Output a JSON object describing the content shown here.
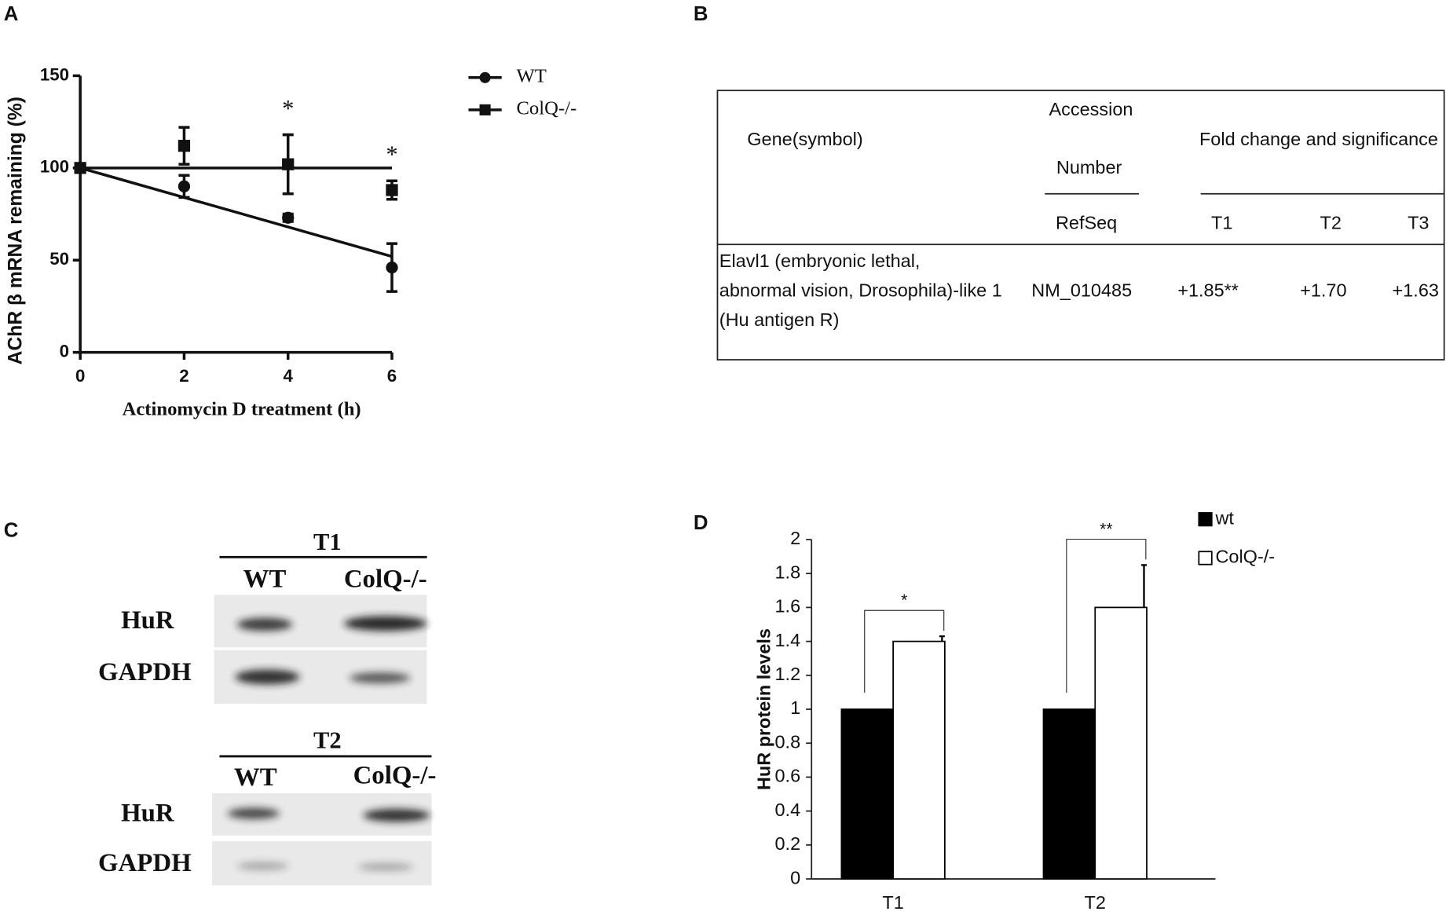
{
  "panel_labels": [
    "A",
    "B",
    "C",
    "D"
  ],
  "chart_data": [
    {
      "type": "line",
      "x_label": "Actinomycin D treatment (h)",
      "y_label": "AChR β mRNA remaining (%)",
      "x": [
        0,
        2,
        4,
        6
      ],
      "xlim": [
        0,
        6
      ],
      "xticks": [
        0,
        2,
        4,
        6
      ],
      "ylim": [
        0,
        150
      ],
      "yticks": [
        0,
        50,
        100,
        150
      ],
      "fit_x": [
        0,
        6
      ],
      "series": [
        {
          "name": "WT",
          "color": "#111111",
          "marker": "circle",
          "values": [
            100,
            90,
            73,
            46
          ],
          "errors": [
            0,
            6,
            2,
            13
          ],
          "fit": [
            100,
            52
          ]
        },
        {
          "name": "ColQ-/-",
          "color": "#111111",
          "marker": "square",
          "values": [
            100,
            112,
            102,
            88
          ],
          "errors": [
            0,
            10,
            16,
            5
          ],
          "fit": [
            100,
            100
          ]
        }
      ],
      "annotations": [
        {
          "x": 4,
          "text": "*"
        },
        {
          "x": 6,
          "text": "*"
        }
      ],
      "legend": "upper right"
    },
    {
      "type": "bar",
      "y_label": "HuR protein levels",
      "categories": [
        "T1",
        "T2"
      ],
      "ylim": [
        0,
        2
      ],
      "yticks": [
        0,
        0.2,
        0.4,
        0.6,
        0.8,
        1,
        1.2,
        1.4,
        1.6,
        1.8,
        2
      ],
      "series": [
        {
          "name": "wt",
          "color": "#000000",
          "values": [
            1,
            1
          ]
        },
        {
          "name": "ColQ-/-",
          "color": "#ffffff",
          "values": [
            1.4,
            1.6
          ],
          "errors": [
            0.03,
            0.25
          ]
        }
      ],
      "significance": [
        {
          "category": 0,
          "text": "*"
        },
        {
          "category": 1,
          "text": "**"
        }
      ],
      "legend": "upper right"
    }
  ],
  "table": {
    "header": {
      "gene": "Gene(symbol)",
      "accession": [
        "Accession",
        "Number"
      ],
      "refseq": "RefSeq",
      "fold": "Fold change and significance",
      "times": [
        "T1",
        "T2",
        "T3"
      ]
    },
    "rows": [
      {
        "gene": [
          "Elavl1 (embryonic lethal,",
          "abnormal vision, Drosophila)-like 1",
          " (Hu antigen R)"
        ],
        "refseq": "NM_010485",
        "fold": [
          "+1.85**",
          "+1.70",
          "+1.63"
        ]
      }
    ]
  },
  "blots": [
    {
      "title": "T1",
      "lanes": [
        "WT",
        "ColQ-/-"
      ],
      "rows": [
        "HuR",
        "GAPDH"
      ]
    },
    {
      "title": "T2",
      "lanes": [
        "WT",
        "ColQ-/-"
      ],
      "rows": [
        "HuR",
        "GAPDH"
      ]
    }
  ]
}
